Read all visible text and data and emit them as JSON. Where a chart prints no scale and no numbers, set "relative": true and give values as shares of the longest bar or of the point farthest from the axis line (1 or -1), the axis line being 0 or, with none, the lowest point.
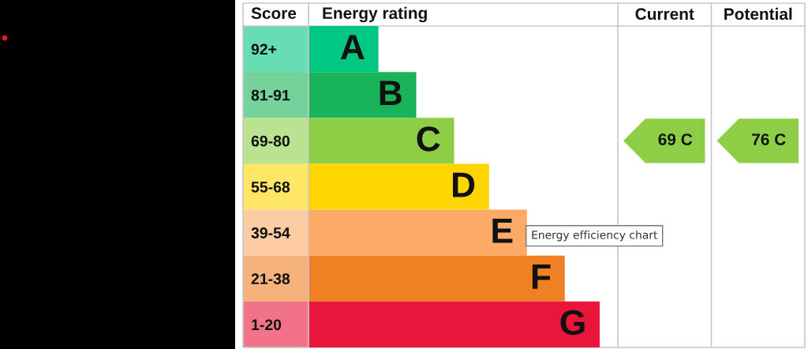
{
  "chart_data": {
    "type": "bar",
    "orientation": "horizontal",
    "relative": true,
    "title": "Energy efficiency chart",
    "xlabel": "Energy rating",
    "ylabel": "Score",
    "categories": [
      "92+",
      "81-91",
      "69-80",
      "55-68",
      "39-54",
      "21-38",
      "1-20"
    ],
    "values": [
      0.24,
      0.37,
      0.5,
      0.62,
      0.75,
      0.88,
      1
    ],
    "colors": [
      "#00c781",
      "#19b459",
      "#8dce46",
      "#ffd500",
      "#fcaa65",
      "#ef8023",
      "#e9153b"
    ],
    "tick_labels": "y",
    "annotations": [
      {
        "text": "A",
        "x": 0.24,
        "y": "92+"
      },
      {
        "text": "B",
        "x": 0.37,
        "y": "81-91"
      },
      {
        "text": "C",
        "x": 0.5,
        "y": "69-80"
      },
      {
        "text": "D",
        "x": 0.62,
        "y": "55-68"
      },
      {
        "text": "E",
        "x": 0.75,
        "y": "39-54"
      },
      {
        "text": "F",
        "x": 0.88,
        "y": "21-38"
      },
      {
        "text": "G",
        "x": 1,
        "y": "1-20"
      },
      "Current",
      "Potential",
      "69 C",
      "76 C"
    ]
  }
}
